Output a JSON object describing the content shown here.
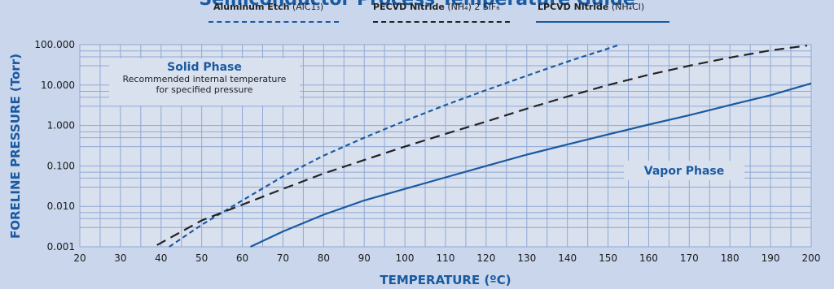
{
  "chart_data": {
    "type": "line",
    "title": "Semiconductor Process Temperature Guide",
    "xlabel": "TEMPERATURE (ºC)",
    "ylabel": "FORELINE PRESSURE (Torr)",
    "x_ticks": [
      "20",
      "30",
      "40",
      "50",
      "60",
      "70",
      "80",
      "90",
      "100",
      "110",
      "120",
      "130",
      "140",
      "150",
      "160",
      "170",
      "180",
      "190",
      "200"
    ],
    "y_ticks": [
      "0.001",
      "0.010",
      "0.100",
      "1.000",
      "10.000",
      "100.000"
    ],
    "xlim": [
      20,
      200
    ],
    "ylim": [
      0.001,
      100
    ],
    "yscale": "log",
    "grid": true,
    "legend_placement": "top",
    "series": [
      {
        "name": "Aluminum Etch (AlC1₃)",
        "style": "dotted",
        "color": "#1a5aa0",
        "x": [
          42,
          50,
          60,
          70,
          80,
          90,
          100,
          110,
          120,
          130,
          140,
          150,
          153
        ],
        "y": [
          0.001,
          0.0035,
          0.014,
          0.055,
          0.18,
          0.5,
          1.3,
          3.2,
          7.5,
          17,
          38,
          80,
          100
        ]
      },
      {
        "name": "PECVD Nitride (NH₄) 2 SiF₆",
        "style": "dashed",
        "color": "#222222",
        "x": [
          39,
          50,
          60,
          70,
          80,
          90,
          100,
          110,
          120,
          130,
          140,
          150,
          160,
          170,
          180,
          190,
          199
        ],
        "y": [
          0.0011,
          0.0045,
          0.011,
          0.027,
          0.065,
          0.14,
          0.3,
          0.62,
          1.25,
          2.6,
          5.2,
          10,
          18,
          30,
          48,
          72,
          95
        ]
      },
      {
        "name": "LPCVD Nitride (NH₄Cl)",
        "style": "solid",
        "color": "#1a5aa0",
        "x": [
          62,
          70,
          80,
          90,
          100,
          110,
          120,
          130,
          140,
          150,
          160,
          170,
          180,
          190,
          200
        ],
        "y": [
          0.001,
          0.0024,
          0.0062,
          0.014,
          0.027,
          0.052,
          0.1,
          0.19,
          0.34,
          0.6,
          1.05,
          1.8,
          3.2,
          5.6,
          11
        ]
      }
    ],
    "annotations": {
      "solid_phase_title": "Solid Phase",
      "solid_phase_note": "Recommended internal temperature for specified pressure",
      "vapor_phase_title": "Vapor Phase"
    }
  },
  "legend": {
    "aluminum": {
      "bold": "Aluminum Etch",
      "rest": "(AlC1₃)"
    },
    "pecvd": {
      "bold": "PECVD Nitride",
      "rest": "(NH₄) 2 SiF₆"
    },
    "lpcvd": {
      "bold": "LPCVD Nitride",
      "rest": "(NH₄Cl)"
    }
  },
  "colors": {
    "background": "#c9d6ec",
    "plot": "#d9e1ef",
    "grid": "#8fa8d4",
    "accent": "#1a5aa0",
    "dashed": "#222222"
  }
}
